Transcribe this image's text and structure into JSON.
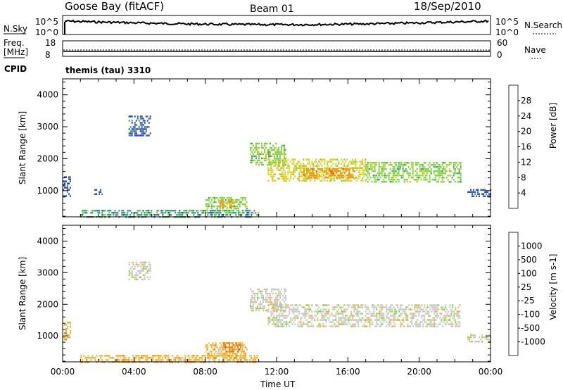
{
  "header": {
    "station": "Goose Bay (fitACF)",
    "beam": "Beam 01",
    "date": "18/Sep/2010",
    "cpid_label": "CPID",
    "cpid_text": "themis (tau) 3310"
  },
  "noise_panel": {
    "left_label": "N.Sky",
    "right_label": "N.Search",
    "left_ticks": [
      "10^5",
      "10^0"
    ],
    "right_ticks": [
      "10^5",
      "10^0"
    ]
  },
  "freq_panel": {
    "left_label_1": "Freq.",
    "left_label_2": "[MHz]",
    "right_label": "Nave",
    "left_ticks": [
      "18",
      "8"
    ],
    "right_ticks": [
      "60",
      "0"
    ]
  },
  "chart_data": [
    {
      "type": "heatmap",
      "title": "Power",
      "ylabel": "Slant Range [km]",
      "xlabel": "Time UT",
      "x_ticks": [
        "00:00",
        "04:00",
        "08:00",
        "12:00",
        "16:00",
        "20:00",
        "00:00"
      ],
      "xlim_hours": [
        0,
        24
      ],
      "ylim": [
        180,
        4500
      ],
      "y_ticks": [
        1000,
        2000,
        3000,
        4000
      ],
      "colorbar": {
        "label": "Power [dB]",
        "ticks": [
          "4",
          "8",
          "12",
          "16",
          "20",
          "24",
          "28"
        ],
        "colors": [
          "#1a2bff",
          "#2f52a8",
          "#3f9a7a",
          "#7cd23a",
          "#d6d21e",
          "#f09a1a",
          "#ff5a10",
          "#e81818"
        ]
      },
      "regions": [
        {
          "t0": 0.0,
          "t1": 0.4,
          "r0": 850,
          "r1": 1450,
          "level": 1
        },
        {
          "t0": 1.7,
          "t1": 2.2,
          "r0": 900,
          "r1": 1050,
          "level": 1
        },
        {
          "t0": 3.7,
          "t1": 4.9,
          "r0": 2750,
          "r1": 3350,
          "level": 1
        },
        {
          "t0": 8.0,
          "t1": 10.3,
          "r0": 300,
          "r1": 800,
          "level": 3
        },
        {
          "t0": 8.8,
          "t1": 9.6,
          "r0": 500,
          "r1": 700,
          "level": 5
        },
        {
          "t0": 10.5,
          "t1": 12.5,
          "r0": 1800,
          "r1": 2500,
          "level": 3
        },
        {
          "t0": 11.5,
          "t1": 17.0,
          "r0": 1300,
          "r1": 2000,
          "level": 4
        },
        {
          "t0": 13.5,
          "t1": 16.5,
          "r0": 1400,
          "r1": 1700,
          "level": 5
        },
        {
          "t0": 17.0,
          "t1": 22.3,
          "r0": 1300,
          "r1": 1900,
          "level": 3
        },
        {
          "t0": 22.7,
          "t1": 24.0,
          "r0": 800,
          "r1": 1050,
          "level": 1
        },
        {
          "t0": 1.0,
          "t1": 11.0,
          "r0": 180,
          "r1": 400,
          "level": 2
        }
      ]
    },
    {
      "type": "heatmap",
      "title": "Velocity",
      "ylabel": "Slant Range [km]",
      "xlabel": "Time UT",
      "x_ticks": [
        "00:00",
        "04:00",
        "08:00",
        "12:00",
        "16:00",
        "20:00",
        "00:00"
      ],
      "xlim_hours": [
        0,
        24
      ],
      "ylim": [
        180,
        4500
      ],
      "y_ticks": [
        1000,
        2000,
        3000,
        4000
      ],
      "colorbar": {
        "label": "Velocity [m s-1]",
        "ticks": [
          "1000",
          "500",
          "100",
          "25",
          "-25",
          "-100",
          "-500",
          "-1000"
        ],
        "colors": [
          "#1a2bff",
          "#2f52a8",
          "#3f9a7a",
          "#7cd23a",
          "#c8c8c0",
          "#f0b020",
          "#f07a10",
          "#ff3a10",
          "#e81818"
        ]
      },
      "regions": [
        {
          "t0": 0.0,
          "t1": 0.4,
          "r0": 850,
          "r1": 1450,
          "level": 5
        },
        {
          "t0": 3.7,
          "t1": 4.9,
          "r0": 2750,
          "r1": 3350,
          "level": 4
        },
        {
          "t0": 8.0,
          "t1": 10.3,
          "r0": 300,
          "r1": 800,
          "level": 5
        },
        {
          "t0": 9.0,
          "t1": 10.0,
          "r0": 500,
          "r1": 800,
          "level": 6
        },
        {
          "t0": 10.5,
          "t1": 12.5,
          "r0": 1800,
          "r1": 2500,
          "level": 4
        },
        {
          "t0": 11.5,
          "t1": 22.3,
          "r0": 1300,
          "r1": 2000,
          "level": 4
        },
        {
          "t0": 22.7,
          "t1": 24.0,
          "r0": 800,
          "r1": 1050,
          "level": 4
        },
        {
          "t0": 1.0,
          "t1": 11.0,
          "r0": 180,
          "r1": 400,
          "level": 5
        }
      ]
    }
  ]
}
